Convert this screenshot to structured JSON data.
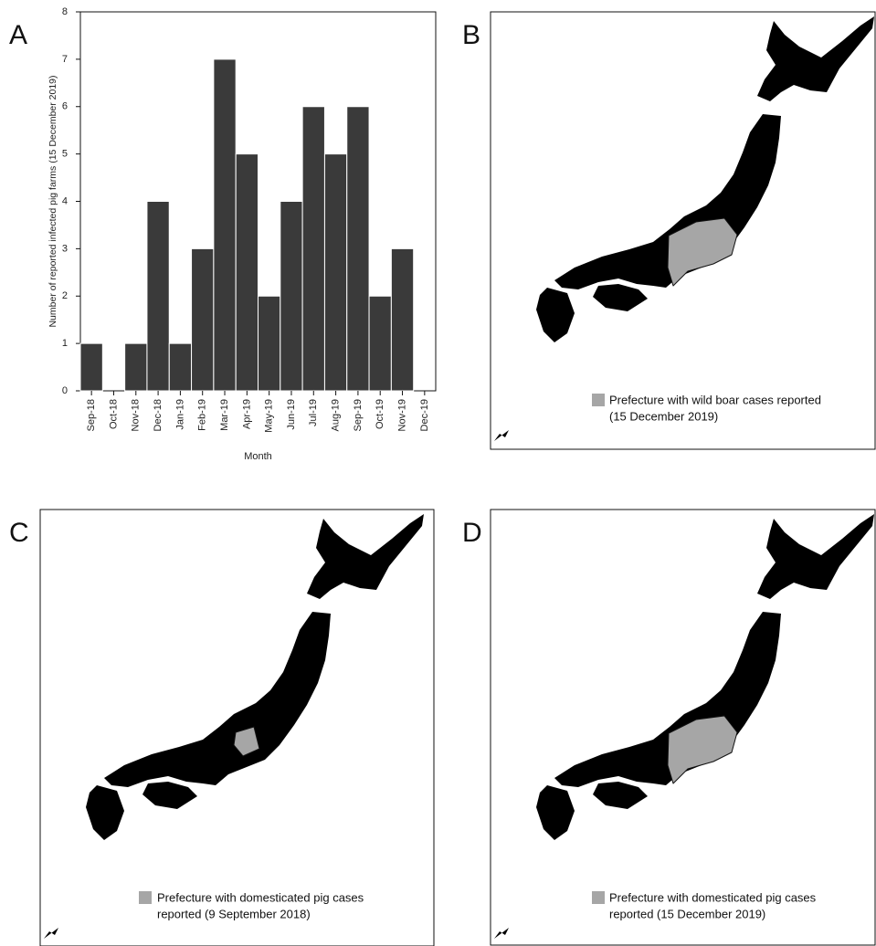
{
  "chart_data": {
    "type": "bar",
    "x_label": "Month",
    "y_label": "Number of reported infected pig farms (15 December 2019)",
    "categories": [
      "Sep-18",
      "Oct-18",
      "Nov-18",
      "Dec-18",
      "Jan-19",
      "Feb-19",
      "Mar-19",
      "Apr-19",
      "May-19",
      "Jun-19",
      "Jul-19",
      "Aug-19",
      "Sep-19",
      "Oct-19",
      "Nov-19",
      "Dec-19"
    ],
    "values": [
      1,
      0,
      1,
      4,
      1,
      3,
      7,
      5,
      2,
      4,
      6,
      5,
      6,
      2,
      3,
      0
    ],
    "color": "#3a3a3a",
    "ylim": [
      0,
      8
    ],
    "yticks": [
      0,
      1,
      2,
      3,
      4,
      5,
      6,
      7,
      8
    ]
  },
  "panel_labels": [
    "A",
    "B",
    "C",
    "D"
  ],
  "maps": [
    {
      "legend": [
        "Prefecture with wild boar cases reported",
        "(15 December 2019)"
      ]
    },
    {
      "legend": [
        "Prefecture with domesticated pig cases",
        "reported (9 September 2018)"
      ]
    },
    {
      "legend": [
        "Prefecture with domesticated pig cases",
        "reported (15 December 2019)"
      ]
    }
  ]
}
